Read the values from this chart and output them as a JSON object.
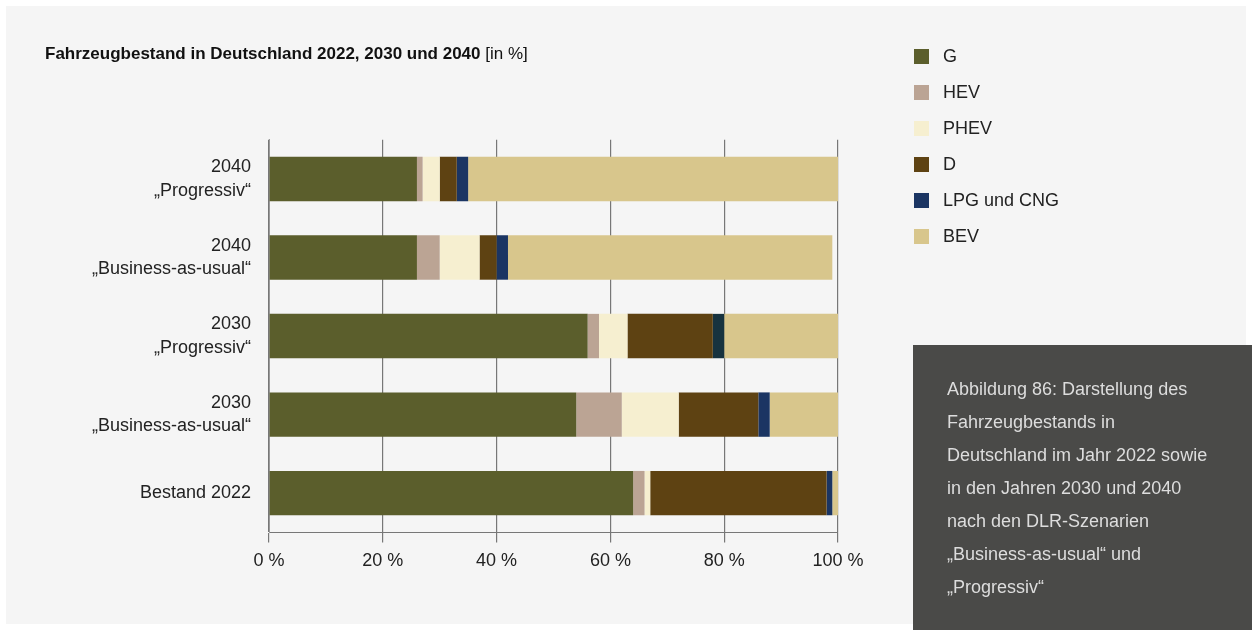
{
  "chart_data": {
    "type": "bar",
    "orientation": "horizontal",
    "stacked": true,
    "title": "Fahrzeugbestand in Deutschland 2022, 2030 und 2040",
    "subtitle": "[in %]",
    "categories": [
      "2040\n„Progressiv“",
      "2040\n„Business-as-usual“",
      "2030\n„Progressiv“",
      "2030\n„Business-as-usual“",
      "Bestand 2022"
    ],
    "series": [
      {
        "name": "G",
        "color": "#5b5e2c",
        "values": [
          26,
          26,
          56,
          54,
          64
        ]
      },
      {
        "name": "HEV",
        "color": "#bba494",
        "values": [
          1,
          4,
          2,
          8,
          2
        ]
      },
      {
        "name": "PHEV",
        "color": "#f6efd0",
        "values": [
          3,
          7,
          5,
          10,
          1
        ]
      },
      {
        "name": "D",
        "color": "#5e4212",
        "values": [
          3,
          3,
          15,
          14,
          31
        ]
      },
      {
        "name": "LPG und CNG",
        "color": "#1b3563",
        "colors": [
          "#1b3563",
          "#1b3563",
          "#17333f",
          "#1b3563",
          "#1b3563"
        ],
        "values": [
          2,
          2,
          2,
          2,
          1
        ]
      },
      {
        "name": "BEV",
        "color": "#d8c68c",
        "values": [
          65,
          57,
          20,
          12,
          1
        ]
      }
    ],
    "xlim": [
      0,
      100
    ],
    "xticks": [
      {
        "value": 0,
        "label": "0 %"
      },
      {
        "value": 20,
        "label": "20 %"
      },
      {
        "value": 40,
        "label": "40 %"
      },
      {
        "value": 60,
        "label": "60 %"
      },
      {
        "value": 80,
        "label": "80 %"
      },
      {
        "value": 100,
        "label": "100 %"
      }
    ],
    "grid": "x",
    "legend": "right",
    "annotations": [
      "Abbildung 86: Darstellung des Fahrzeugbestands in Deutschland im Jahr 2022 sowie in den Jahren 2030 und 2040 nach den DLR-Szenarien „Business-as-usual“ und „Progressiv“"
    ]
  }
}
